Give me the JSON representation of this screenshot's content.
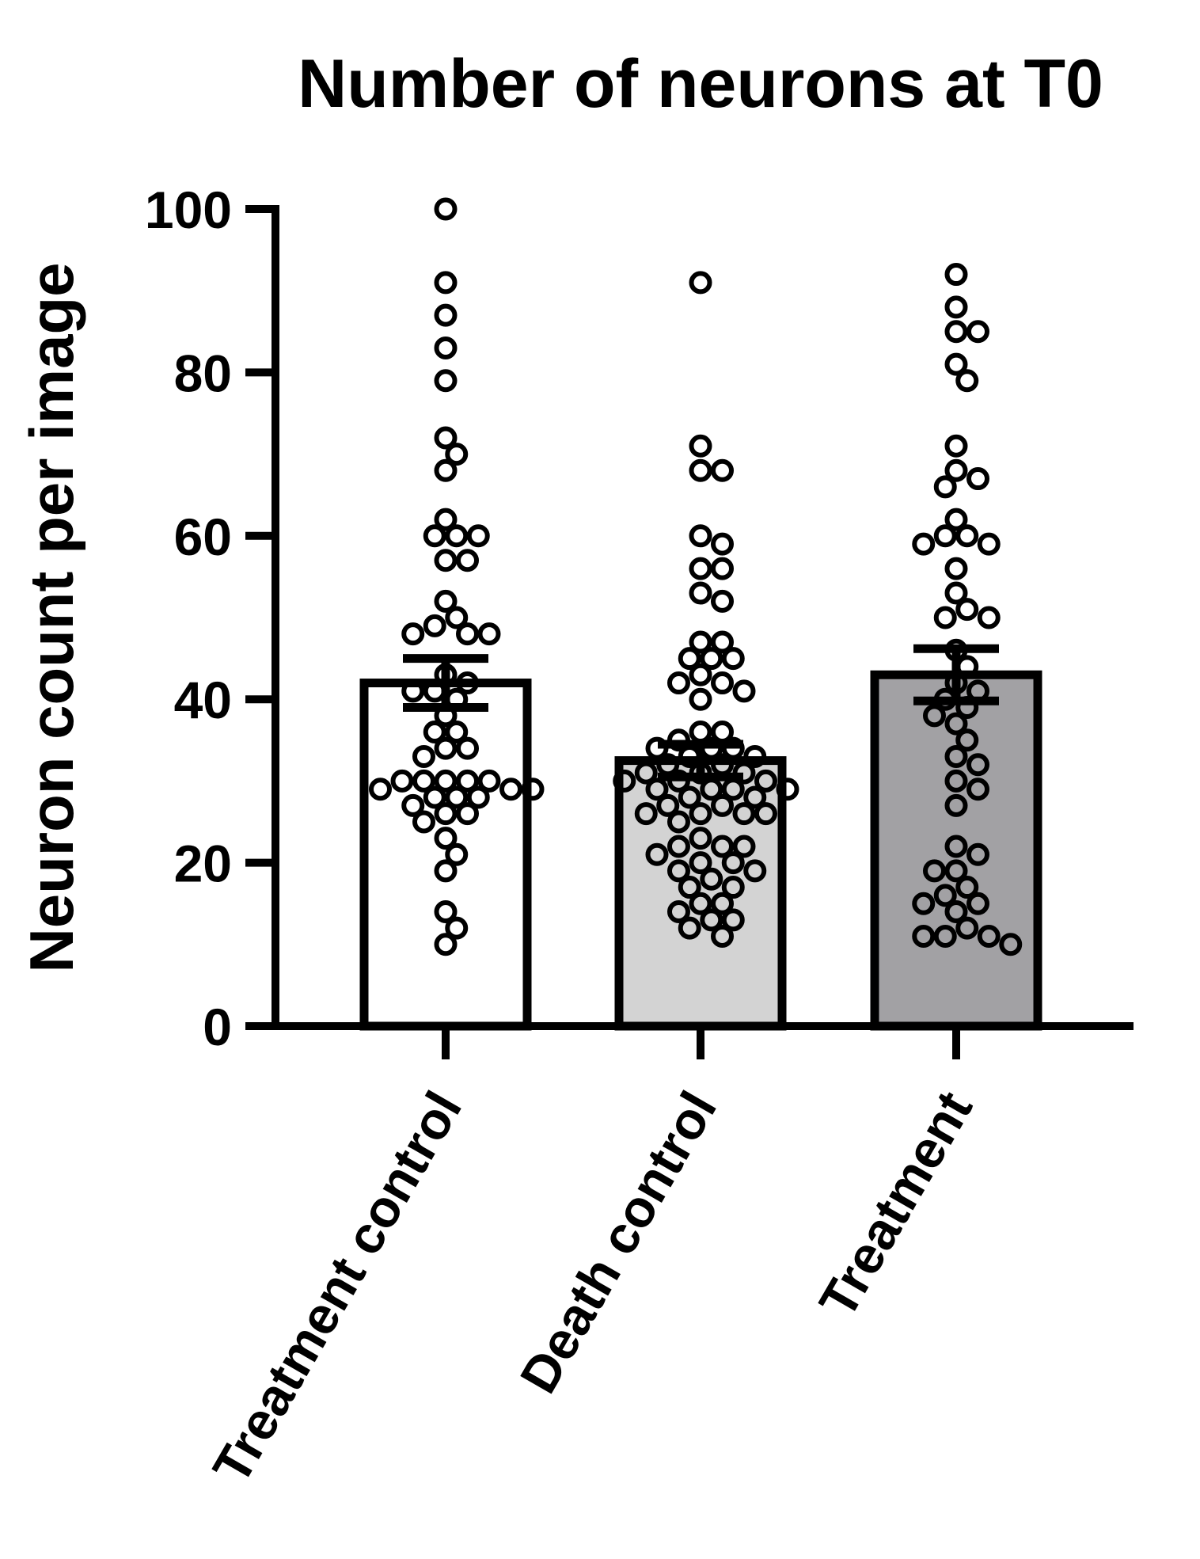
{
  "chart_data": {
    "type": "bar",
    "title": "Number of neurons at T0",
    "xlabel": "",
    "ylabel": "Neuron count per image",
    "ylim": [
      0,
      100
    ],
    "yticks": [
      0,
      20,
      40,
      60,
      80,
      100
    ],
    "ytick_labels": [
      "0",
      "20",
      "40",
      "60",
      "80",
      "100"
    ],
    "grid": false,
    "legend": null,
    "categories": [
      "Treatment control",
      "Death control",
      "Treatment"
    ],
    "bar_colors": [
      "#ffffff",
      "#d3d3d3",
      "#a2a1a4"
    ],
    "edge_color": "#000000",
    "values": [
      42,
      32.5,
      43
    ],
    "error_bars": {
      "type": "SEM",
      "upper": [
        45,
        34.5,
        46.2
      ],
      "lower": [
        39,
        30.5,
        39.8
      ]
    },
    "points": [
      {
        "name": "Treatment control",
        "values": [
          100,
          91,
          87,
          83,
          79,
          72,
          70,
          68,
          62,
          60,
          60,
          60,
          57,
          57,
          52,
          50,
          49,
          48,
          48,
          48,
          43,
          42,
          41,
          41,
          40,
          38,
          36,
          36,
          34,
          34,
          33,
          30,
          30,
          30,
          30,
          30,
          29,
          29,
          29,
          28,
          28,
          28,
          27,
          26,
          26,
          25,
          23,
          21,
          19,
          14,
          12,
          10
        ]
      },
      {
        "name": "Death control",
        "values": [
          91,
          71,
          68,
          68,
          60,
          59,
          56,
          56,
          53,
          52,
          47,
          47,
          45,
          45,
          45,
          43,
          42,
          42,
          41,
          40,
          36,
          36,
          35,
          34,
          34,
          34,
          33,
          33,
          32,
          32,
          31,
          31,
          31,
          30,
          30,
          30,
          29,
          29,
          29,
          29,
          28,
          28,
          27,
          27,
          26,
          26,
          26,
          26,
          25,
          23,
          22,
          22,
          22,
          21,
          20,
          20,
          19,
          19,
          18,
          17,
          17,
          15,
          15,
          14,
          13,
          13,
          12,
          11
        ]
      },
      {
        "name": "Treatment",
        "values": [
          92,
          88,
          85,
          85,
          81,
          79,
          71,
          68,
          67,
          66,
          62,
          60,
          60,
          59,
          59,
          56,
          53,
          51,
          50,
          50,
          46,
          44,
          42,
          41,
          40,
          39,
          38,
          37,
          35,
          33,
          32,
          30,
          29,
          27,
          22,
          21,
          19,
          19,
          17,
          16,
          15,
          15,
          14,
          12,
          11,
          11,
          11,
          10
        ]
      }
    ]
  }
}
